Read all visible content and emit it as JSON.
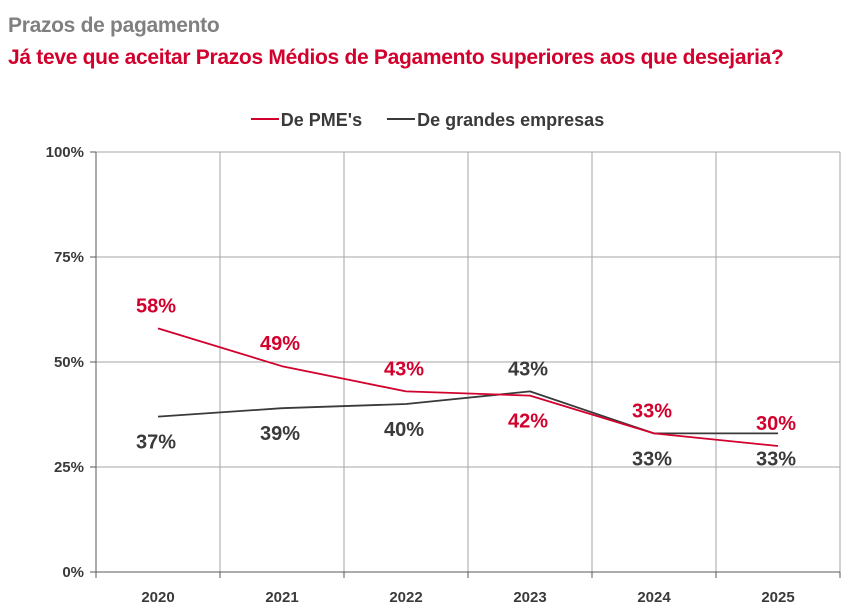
{
  "header": {
    "title": "Prazos de pagamento",
    "subtitle": "Já teve que aceitar Prazos Médios de Pagamento superiores aos que desejaria?"
  },
  "chart_data": {
    "type": "line",
    "x": [
      "2020",
      "2021",
      "2022",
      "2023",
      "2024",
      "2025"
    ],
    "ylim": [
      0,
      100
    ],
    "y_ticks": [
      0,
      25,
      50,
      75,
      100
    ],
    "y_tick_labels": [
      "0%",
      "25%",
      "50%",
      "75%",
      "100%"
    ],
    "grid": true,
    "legend_position": "top-center",
    "series": [
      {
        "name": "De PME's",
        "color": "#d2002d",
        "values": [
          58,
          49,
          43,
          42,
          33,
          30
        ],
        "labels": [
          "58%",
          "49%",
          "43%",
          "42%",
          "33%",
          "30%"
        ],
        "label_side": [
          "above",
          "above",
          "above",
          "below",
          "above",
          "above"
        ]
      },
      {
        "name": "De grandes empresas",
        "color": "#3a3a3a",
        "values": [
          37,
          39,
          40,
          43,
          33,
          33
        ],
        "labels": [
          "37%",
          "39%",
          "40%",
          "43%",
          "33%",
          "33%"
        ],
        "label_side": [
          "below",
          "below",
          "below",
          "above",
          "below",
          "below"
        ]
      }
    ]
  }
}
